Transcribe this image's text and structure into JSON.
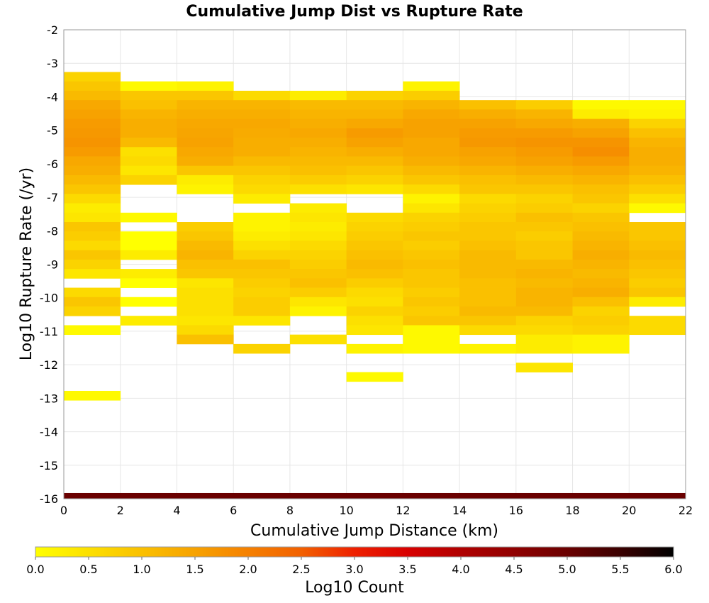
{
  "chart_data": {
    "type": "heatmap",
    "title": "Cumulative Jump Dist vs Rupture Rate",
    "xlabel": "Cumulative Jump Distance (km)",
    "ylabel": "Log10 Rupture Rate (/yr)",
    "xlim": [
      0,
      22
    ],
    "ylim": [
      -16,
      -2
    ],
    "x_ticks": [
      0,
      2,
      4,
      6,
      8,
      10,
      12,
      14,
      16,
      18,
      20,
      22
    ],
    "y_ticks": [
      -2,
      -3,
      -4,
      -5,
      -6,
      -7,
      -8,
      -9,
      -10,
      -11,
      -12,
      -13,
      -14,
      -15,
      -16
    ],
    "grid": true,
    "x_bin_width": 2,
    "y_bin_height": 0.28,
    "x_bin_starts": [
      0,
      2,
      4,
      6,
      8,
      10,
      12,
      14,
      16,
      18,
      20
    ],
    "y_bin_bottoms": [
      -3.54,
      -3.82,
      -4.1,
      -4.38,
      -4.66,
      -4.94,
      -5.22,
      -5.5,
      -5.78,
      -6.06,
      -6.34,
      -6.62,
      -6.9,
      -7.18,
      -7.46,
      -7.74,
      -8.02,
      -8.3,
      -8.58,
      -8.86,
      -9.14,
      -9.42,
      -9.7,
      -9.98,
      -10.26,
      -10.54,
      -10.82,
      -11.1,
      -11.38,
      -11.66,
      -11.94,
      -12.22,
      -12.5,
      -12.78,
      -13.06
    ],
    "log10_counts": [
      [
        0.7,
        0.9,
        1.1,
        1.4,
        1.5,
        1.6,
        1.65,
        1.7,
        1.6,
        1.4,
        1.3,
        1.1,
        0.9,
        0.6,
        0.3,
        0.4,
        0.9,
        0.8,
        0.6,
        0.9,
        0.7,
        0.4,
        null,
        0.6,
        0.9,
        0.7,
        null,
        0.1,
        null,
        null,
        null,
        null,
        null,
        null,
        0.1
      ],
      [
        null,
        0.1,
        0.9,
        1.0,
        1.2,
        1.3,
        1.3,
        1.1,
        0.5,
        0.6,
        0.4,
        0.7,
        null,
        null,
        null,
        0.1,
        null,
        0.0,
        0.0,
        0.3,
        null,
        0.3,
        0.0,
        null,
        0.0,
        null,
        0.3,
        null,
        null,
        null,
        null,
        null,
        null,
        null,
        null
      ],
      [
        null,
        0.2,
        0.9,
        1.2,
        1.3,
        1.4,
        1.45,
        1.5,
        1.4,
        1.3,
        0.9,
        0.3,
        0.2,
        null,
        null,
        null,
        0.8,
        0.9,
        1.1,
        1.2,
        1.0,
        0.9,
        0.4,
        0.5,
        0.5,
        0.5,
        0.4,
        0.6,
        1.0,
        null,
        null,
        null,
        null,
        null,
        null
      ],
      [
        null,
        null,
        0.6,
        1.2,
        1.3,
        1.4,
        1.35,
        1.3,
        1.3,
        1.1,
        0.9,
        0.7,
        0.6,
        0.3,
        null,
        0.2,
        0.2,
        0.3,
        0.5,
        0.7,
        1.0,
        0.9,
        0.8,
        0.7,
        0.8,
        0.8,
        0.4,
        null,
        null,
        0.7,
        null,
        null,
        null,
        null,
        null
      ],
      [
        null,
        null,
        0.3,
        1.1,
        1.2,
        1.3,
        1.4,
        1.3,
        1.2,
        1.1,
        1.0,
        0.8,
        0.5,
        null,
        0.3,
        0.4,
        0.3,
        0.4,
        0.6,
        0.7,
        0.8,
        0.9,
        1.0,
        0.8,
        0.4,
        0.2,
        null,
        null,
        0.5,
        null,
        null,
        null,
        null,
        null,
        null
      ],
      [
        null,
        null,
        0.7,
        1.1,
        1.2,
        1.4,
        1.6,
        1.5,
        1.3,
        1.1,
        0.9,
        0.7,
        0.4,
        null,
        null,
        0.6,
        0.7,
        0.8,
        0.9,
        1.0,
        1.1,
        1.0,
        0.8,
        0.6,
        0.5,
        0.7,
        0.5,
        0.4,
        null,
        0.2,
        null,
        null,
        0.1,
        null,
        null
      ],
      [
        null,
        0.2,
        0.8,
        1.2,
        1.4,
        1.5,
        1.5,
        1.4,
        1.4,
        1.3,
        1.1,
        0.9,
        0.6,
        0.2,
        0.4,
        0.7,
        0.8,
        0.9,
        0.8,
        0.9,
        1.0,
        0.9,
        0.9,
        0.8,
        0.9,
        0.8,
        0.9,
        0.1,
        0.1,
        0.1,
        null,
        null,
        null,
        null,
        null
      ],
      [
        null,
        null,
        null,
        1.0,
        1.3,
        1.5,
        1.6,
        1.65,
        1.5,
        1.4,
        1.2,
        1.0,
        0.9,
        0.6,
        0.7,
        0.8,
        0.9,
        0.9,
        1.0,
        1.1,
        1.1,
        1.1,
        1.0,
        1.0,
        1.0,
        1.1,
        0.9,
        0.6,
        null,
        0.2,
        null,
        null,
        null,
        null,
        null
      ],
      [
        null,
        null,
        null,
        0.8,
        1.2,
        1.4,
        1.6,
        1.7,
        1.6,
        1.5,
        1.3,
        1.1,
        0.9,
        0.7,
        0.8,
        1.0,
        0.9,
        0.8,
        0.9,
        0.9,
        1.1,
        1.2,
        1.1,
        1.2,
        1.2,
        1.1,
        0.7,
        0.6,
        0.3,
        0.3,
        null,
        0.4,
        null,
        null,
        null
      ],
      [
        null,
        null,
        null,
        0.1,
        0.3,
        1.3,
        1.5,
        1.7,
        1.8,
        1.6,
        1.4,
        1.2,
        1.0,
        0.9,
        0.7,
        0.9,
        1.0,
        1.1,
        1.2,
        1.3,
        1.2,
        1.1,
        1.2,
        1.3,
        1.0,
        0.7,
        0.8,
        0.7,
        0.2,
        0.2,
        null,
        null,
        null,
        null,
        null
      ],
      [
        null,
        null,
        null,
        0.1,
        0.2,
        0.7,
        1.0,
        1.2,
        1.3,
        1.3,
        1.2,
        1.0,
        0.8,
        0.5,
        0.1,
        null,
        0.9,
        0.9,
        1.0,
        1.1,
        1.0,
        0.9,
        0.8,
        0.9,
        0.3,
        null,
        0.6,
        0.6,
        null,
        null,
        null,
        null,
        null,
        null,
        null
      ]
    ],
    "colorbar": {
      "label": "Log10 Count",
      "min": 0.0,
      "max": 6.0,
      "ticks": [
        "0.0",
        "0.5",
        "1.0",
        "1.5",
        "2.0",
        "2.5",
        "3.0",
        "3.5",
        "4.0",
        "4.5",
        "5.0",
        "5.5",
        "6.0"
      ],
      "colors": [
        "#ffff00",
        "#fce000",
        "#fac000",
        "#f7a200",
        "#f58000",
        "#f26000",
        "#ee2000",
        "#d80000",
        "#b00000",
        "#900000",
        "#6a0000",
        "#3a0000",
        "#000000"
      ]
    },
    "bottom_band": {
      "y": -16,
      "color": "#6a0000"
    }
  }
}
